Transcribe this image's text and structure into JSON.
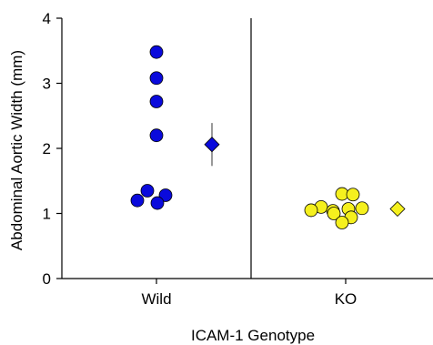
{
  "chart_data": {
    "type": "scatter",
    "title": "",
    "xlabel": "ICAM-1 Genotype",
    "ylabel": "Abdominal Aortic Width (mm)",
    "ylim": [
      0,
      4
    ],
    "yticks": [
      "0",
      "1",
      "2",
      "3",
      "4"
    ],
    "categories": [
      "Wild",
      "KO"
    ],
    "grid": false,
    "series": [
      {
        "category": "Wild",
        "color": "#0a0adc",
        "points": [
          3.48,
          3.08,
          2.72,
          2.2,
          1.35,
          1.28,
          1.2,
          1.16
        ],
        "mean": 2.06,
        "error": 0.33
      },
      {
        "category": "KO",
        "color": "#f5f01e",
        "points": [
          1.3,
          1.29,
          1.1,
          1.08,
          1.07,
          1.05,
          1.04,
          1.0,
          0.94,
          0.86
        ],
        "mean": 1.07,
        "error": 0.04
      }
    ]
  }
}
